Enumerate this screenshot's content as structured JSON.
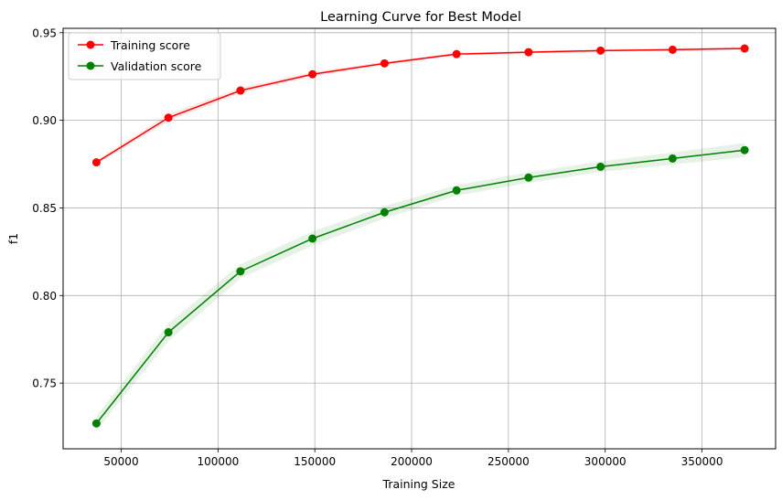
{
  "chart_data": {
    "type": "line",
    "title": "Learning Curve for Best Model",
    "xlabel": "Training Size",
    "ylabel": "f1",
    "xlim": [
      20000,
      388000
    ],
    "ylim": [
      0.7125,
      0.9525
    ],
    "xticks": [
      50000,
      100000,
      150000,
      200000,
      250000,
      300000,
      350000
    ],
    "yticks": [
      0.75,
      0.8,
      0.85,
      0.9,
      0.95
    ],
    "xtick_labels": [
      "50000",
      "100000",
      "150000",
      "200000",
      "250000",
      "300000",
      "350000"
    ],
    "ytick_labels": [
      "0.75",
      "0.80",
      "0.85",
      "0.90",
      "0.95"
    ],
    "grid": true,
    "legend_position": "top-left",
    "x": [
      37200,
      74400,
      111600,
      148800,
      186000,
      223200,
      260400,
      297600,
      334800,
      372000
    ],
    "series": [
      {
        "name": "Training score",
        "color": "#ff0000",
        "band_color": "#ff0000",
        "values": [
          0.876,
          0.9015,
          0.917,
          0.9263,
          0.9325,
          0.9378,
          0.9389,
          0.9398,
          0.9403,
          0.941
        ],
        "band": [
          0.0012,
          0.002,
          0.0015,
          0.0013,
          0.001,
          0.0008,
          0.0008,
          0.0008,
          0.0008,
          0.0008
        ]
      },
      {
        "name": "Validation score",
        "color": "#008000",
        "band_color": "#008000",
        "values": [
          0.727,
          0.779,
          0.8138,
          0.8325,
          0.8475,
          0.86,
          0.8673,
          0.8735,
          0.8782,
          0.883
        ],
        "band": [
          0.004,
          0.005,
          0.004,
          0.004,
          0.0035,
          0.003,
          0.003,
          0.003,
          0.0035,
          0.004
        ]
      }
    ]
  }
}
